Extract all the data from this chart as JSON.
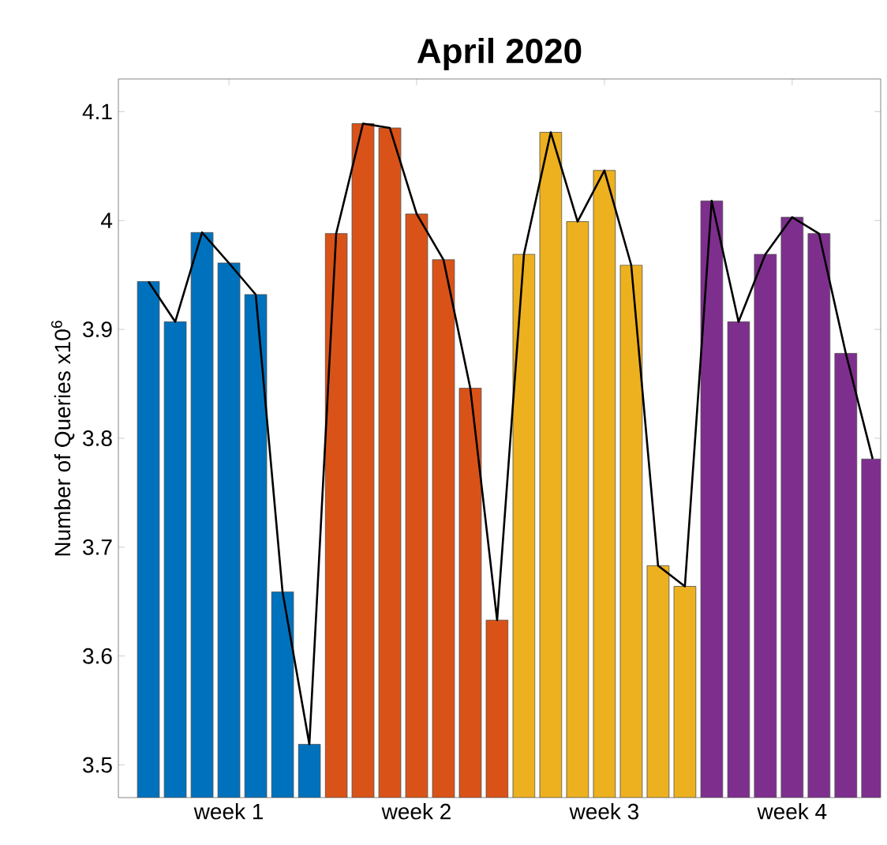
{
  "chart_data": {
    "type": "bar",
    "title": "**April 2020**",
    "ylabel": "Number of Queries x10$^{6}$",
    "categories": [
      null,
      null,
      null,
      "week 1",
      null,
      null,
      null,
      null,
      null,
      null,
      "week 2",
      null,
      null,
      null,
      null,
      null,
      null,
      "week 3",
      null,
      null,
      null,
      null,
      null,
      null,
      "week 4",
      null,
      null,
      null
    ],
    "series": [
      {
        "colors": [
          "#0072bd",
          "#0072bd",
          "#0072bd",
          "#0072bd",
          "#0072bd",
          "#0072bd",
          "#0072bd",
          "#d95319",
          "#d95319",
          "#d95319",
          "#d95319",
          "#d95319",
          "#d95319",
          "#d95319",
          "#edb120",
          "#edb120",
          "#edb120",
          "#edb120",
          "#edb120",
          "#edb120",
          "#edb120",
          "#7e2f8e",
          "#7e2f8e",
          "#7e2f8e",
          "#7e2f8e",
          "#7e2f8e",
          "#7e2f8e",
          "#7e2f8e"
        ],
        "values": [
          3.944,
          3.907,
          3.989,
          3.961,
          3.932,
          3.659,
          3.519,
          3.988,
          4.089,
          4.085,
          4.006,
          3.964,
          3.846,
          3.633,
          3.969,
          4.081,
          3.999,
          4.046,
          3.959,
          3.683,
          3.664,
          4.018,
          3.907,
          3.969,
          4.003,
          3.988,
          3.878,
          3.781
        ]
      },
      {
        "type": "line",
        "color": "#000000",
        "values": [
          3.944,
          3.907,
          3.989,
          3.961,
          3.932,
          3.659,
          3.519,
          3.988,
          4.089,
          4.085,
          4.006,
          3.964,
          3.846,
          3.633,
          3.969,
          4.081,
          3.999,
          4.046,
          3.959,
          3.683,
          3.664,
          4.018,
          3.907,
          3.969,
          4.003,
          3.988,
          3.878,
          3.781
        ]
      }
    ],
    "ylim": [
      3.47,
      4.13
    ],
    "yticks": [
      3.5,
      3.6,
      3.7,
      3.8,
      3.9,
      4,
      4.1
    ]
  }
}
